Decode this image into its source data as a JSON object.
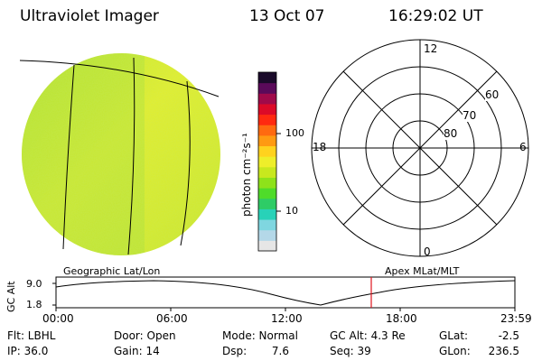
{
  "header": {
    "title": "Ultraviolet Imager",
    "date": "13 Oct 07",
    "time": "16:29:02 UT"
  },
  "colorbar": {
    "unit_label": "photon cm⁻²s⁻¹",
    "tick_labels": [
      "100",
      "10"
    ],
    "colors_bottom_to_top": [
      "#e6e6e6",
      "#b4d8e8",
      "#7fd6e0",
      "#28d2b8",
      "#2ecc66",
      "#4fdc2a",
      "#8ee21a",
      "#c8e81e",
      "#eeee2a",
      "#ffd21e",
      "#ff9a12",
      "#ff6a10",
      "#ff2a10",
      "#dc0a28",
      "#a00a4a",
      "#5a0a5a",
      "#1a0a2a"
    ]
  },
  "polar_plot": {
    "mlt_labels": {
      "top": "12",
      "left": "18",
      "right": "6",
      "bottom": "0"
    },
    "lat_labels": [
      "60",
      "70",
      "80"
    ]
  },
  "orbit_plot": {
    "frame_label_left": "Geographic Lat/Lon",
    "frame_label_right": "Apex  MLat/MLT",
    "ylabel": "GC Alt",
    "y_ticks": [
      "9.0",
      "1.8"
    ],
    "x_ticks": [
      "00:00",
      "06:00",
      "12:00",
      "18:00",
      "23:59"
    ],
    "marker_time_fraction": 0.687
  },
  "info": {
    "row1": {
      "filter": "Flt: LBHL",
      "door": "Door: Open",
      "mode": "Mode: Normal",
      "gcalt": "GC Alt: 4.3 Re",
      "glat_label": "GLat:",
      "glat_value": "-2.5"
    },
    "row2": {
      "ip": "IP: 36.0",
      "gain": "Gain: 14",
      "dsp_label": "Dsp:",
      "dsp_value": "7.6",
      "seq": "Seq: 39",
      "glon_label": "GLon:",
      "glon_value": "236.5"
    }
  }
}
